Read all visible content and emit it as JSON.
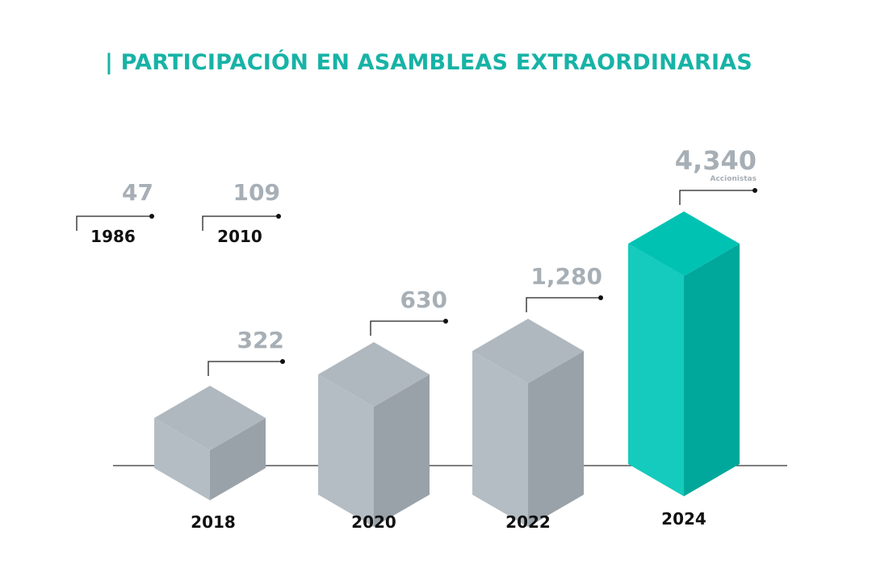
{
  "chart_data": {
    "type": "bar",
    "title": "| PARTICIPACIÓN EN ASAMBLEAS EXTRAORDINARIAS",
    "categories": [
      "1986",
      "2010",
      "2018",
      "2020",
      "2022",
      "2024"
    ],
    "values": [
      47,
      109,
      322,
      630,
      1280,
      4340
    ],
    "value_labels": [
      "47",
      "109",
      "322",
      "630",
      "1,280",
      "4,340"
    ],
    "unit_label": "Accionistas",
    "style": "3d isometric bars; 1986 and 2010 shown as labels only",
    "colors": {
      "title": "#17b3a6",
      "bar": "#b0b8bf",
      "highlight_bar": "#00c2b3",
      "value_text": "#a7afb6",
      "year_text": "#111111"
    }
  }
}
